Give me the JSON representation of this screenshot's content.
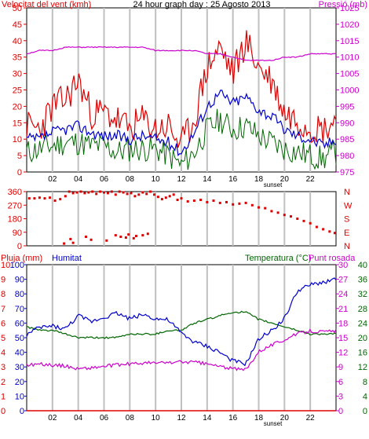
{
  "colors": {
    "red": "#dd0000",
    "blue": "#0000cc",
    "green": "#006600",
    "magenta": "#cc00cc",
    "grid": "#c0c0c0",
    "frame": "#000000"
  },
  "chart_data": [
    {
      "type": "line",
      "title": "24 hour graph day : 25 Agosto 2013",
      "left_axis_label": "Velocitat del vent (kmh)",
      "right_axis_label": "Pressió (mb)",
      "x_tick_labels": [
        "02",
        "04",
        "06",
        "08",
        "10",
        "12",
        "14",
        "16",
        "18",
        "20",
        "22"
      ],
      "x_extra_label": "sunset",
      "ylim_left": [
        0,
        50
      ],
      "y_ticks_left": [
        "0",
        "5",
        "10",
        "15",
        "20",
        "25",
        "30",
        "35",
        "40",
        "45",
        "50"
      ],
      "ylim_right": [
        975,
        1025
      ],
      "y_ticks_right": [
        "975",
        "980",
        "985",
        "990",
        "995",
        "1000",
        "1005",
        "1010",
        "1015",
        "1020",
        "1025"
      ],
      "hours": [
        0,
        1,
        2,
        3,
        4,
        5,
        6,
        7,
        8,
        9,
        10,
        11,
        12,
        13,
        14,
        15,
        16,
        17,
        18,
        19,
        20,
        21,
        22,
        23,
        24
      ],
      "series": [
        {
          "name": "gust",
          "color": "red",
          "axis": "left",
          "values": [
            14,
            13,
            20,
            22,
            28,
            18,
            18,
            16,
            13,
            16,
            13,
            14,
            8,
            16,
            32,
            38,
            30,
            40,
            32,
            28,
            18,
            16,
            14,
            13,
            16
          ]
        },
        {
          "name": "average",
          "color": "blue",
          "axis": "left",
          "values": [
            10,
            10,
            12,
            13,
            14,
            12,
            11,
            11,
            10,
            11,
            10,
            9,
            6,
            12,
            20,
            24,
            21,
            23,
            19,
            17,
            13,
            11,
            10,
            8,
            10
          ]
        },
        {
          "name": "min",
          "color": "green",
          "axis": "left",
          "values": [
            6,
            7,
            8,
            9,
            9,
            8,
            8,
            6,
            7,
            7,
            7,
            5,
            2,
            6,
            13,
            16,
            13,
            14,
            11,
            9,
            7,
            6,
            5,
            4,
            6
          ]
        },
        {
          "name": "pressure",
          "color": "magenta",
          "axis": "right",
          "values": [
            1011,
            1012,
            1012,
            1013,
            1013,
            1013,
            1013,
            1013,
            1013,
            1013,
            1012,
            1012,
            1012,
            1012,
            1011,
            1011,
            1010,
            1009,
            1009,
            1009,
            1010,
            1010,
            1011,
            1011,
            1011
          ]
        }
      ]
    },
    {
      "type": "scatter",
      "ylim": [
        0,
        360
      ],
      "y_ticks": [
        "0",
        "90",
        "180",
        "270",
        "360"
      ],
      "right_labels": [
        "N",
        "W",
        "S",
        "E",
        "N"
      ],
      "hours": [
        0.2,
        0.6,
        1.0,
        1.4,
        1.8,
        2.2,
        2.6,
        3.0,
        3.3,
        3.6,
        3.9,
        4.2,
        4.5,
        4.8,
        5.1,
        5.4,
        5.7,
        6.0,
        6.3,
        6.6,
        6.9,
        7.2,
        7.5,
        7.8,
        8.1,
        8.4,
        8.7,
        9.0,
        9.3,
        9.6,
        9.9,
        10.2,
        10.5,
        10.8,
        11.1,
        11.4,
        11.7,
        12.0,
        12.5,
        13.0,
        13.5,
        14.0,
        14.5,
        15.0,
        15.5,
        16.0,
        16.5,
        17.0,
        17.5,
        18.0,
        18.5,
        19.0,
        19.5,
        20.0,
        20.5,
        21.0,
        21.5,
        22.0,
        22.5,
        23.0,
        23.5,
        23.9,
        4.6,
        5.0,
        6.9,
        7.3,
        7.7,
        8.5,
        9.0,
        9.4,
        3.4,
        3.6,
        2.9,
        6.2,
        7.9,
        8.3
      ],
      "directions": [
        315,
        315,
        320,
        315,
        320,
        300,
        310,
        330,
        360,
        350,
        355,
        360,
        350,
        355,
        360,
        345,
        360,
        355,
        350,
        360,
        340,
        360,
        355,
        345,
        350,
        330,
        340,
        355,
        345,
        360,
        340,
        325,
        310,
        320,
        330,
        340,
        305,
        315,
        295,
        300,
        305,
        290,
        300,
        285,
        290,
        275,
        280,
        285,
        270,
        255,
        250,
        230,
        220,
        205,
        195,
        180,
        165,
        150,
        125,
        110,
        95,
        85,
        60,
        40,
        70,
        60,
        55,
        65,
        70,
        80,
        45,
        20,
        15,
        35,
        75,
        50
      ]
    },
    {
      "type": "line",
      "legend_labels": [
        "Pluja (mm)",
        "Humitat",
        "Temperatura (°C)",
        "Punt rosada"
      ],
      "x_tick_labels": [
        "02",
        "04",
        "06",
        "08",
        "10",
        "12",
        "14",
        "16",
        "18",
        "20",
        "22"
      ],
      "x_extra_label": "sunset",
      "ylim_rain": [
        0,
        10
      ],
      "y_ticks_rain": [
        "0",
        "1",
        "2",
        "3",
        "4",
        "5",
        "6",
        "7",
        "8",
        "9",
        "10"
      ],
      "ylim_humidity": [
        0,
        100
      ],
      "y_ticks_humidity": [
        "0",
        "10",
        "20",
        "30",
        "40",
        "50",
        "60",
        "70",
        "80",
        "90",
        "100"
      ],
      "ylim_temperature": [
        0,
        40
      ],
      "y_ticks_temperature": [
        "0",
        "4",
        "8",
        "12",
        "16",
        "20",
        "24",
        "28",
        "32",
        "36",
        "40"
      ],
      "ylim_dewpoint": [
        0,
        30
      ],
      "y_ticks_dewpoint": [
        "0",
        "3",
        "6",
        "9",
        "12",
        "15",
        "18",
        "21",
        "24",
        "27",
        "30"
      ],
      "hours": [
        0,
        1,
        2,
        3,
        4,
        5,
        6,
        7,
        8,
        9,
        10,
        11,
        12,
        13,
        14,
        15,
        16,
        17,
        18,
        19,
        20,
        21,
        22,
        23,
        24
      ],
      "series": [
        {
          "name": "rain",
          "color": "red",
          "axis": "rain",
          "values": [
            0,
            0,
            0,
            0,
            0,
            0,
            0,
            0,
            0,
            0,
            0,
            0,
            0,
            0,
            0,
            0,
            0,
            0,
            0,
            0,
            0,
            0,
            0,
            0,
            0
          ]
        },
        {
          "name": "humidity",
          "color": "blue",
          "axis": "humidity",
          "values": [
            52,
            57,
            58,
            56,
            65,
            61,
            64,
            67,
            63,
            66,
            63,
            62,
            53,
            47,
            44,
            40,
            34,
            32,
            49,
            55,
            63,
            82,
            86,
            88,
            90
          ]
        },
        {
          "name": "temperature",
          "color": "green",
          "axis": "temperature",
          "values": [
            23,
            22,
            22,
            21,
            20,
            20,
            20,
            20,
            21,
            21,
            21,
            22,
            22,
            24,
            25,
            26,
            27,
            27,
            25,
            24,
            23,
            22,
            21,
            21,
            21
          ]
        },
        {
          "name": "dew_point",
          "color": "magenta",
          "axis": "dewpoint",
          "values": [
            9.4,
            9.6,
            9.4,
            9.2,
            8.6,
            8.8,
            9.1,
            9.4,
            9.6,
            9.8,
            9.8,
            9.9,
            10.0,
            10.0,
            9.6,
            9.1,
            8.6,
            8.4,
            12.2,
            13.5,
            14.6,
            15.8,
            16.4,
            16.2,
            16.4
          ]
        }
      ]
    }
  ]
}
